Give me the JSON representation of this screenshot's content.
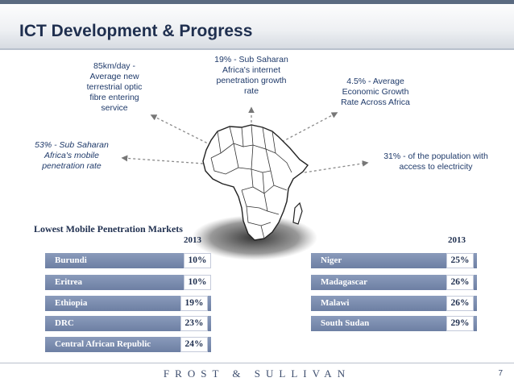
{
  "slide": {
    "title": "ICT Development & Progress",
    "page_number": "7",
    "footer_brand": "FROST & SULLIVAN"
  },
  "callouts": {
    "fibre": [
      "85km/day -",
      "Average new",
      "terrestrial optic",
      "fibre entering",
      "service"
    ],
    "internet": [
      "19% - Sub Saharan",
      "Africa's internet",
      "penetration growth",
      "rate"
    ],
    "growth": [
      "4.5% - Average",
      "Economic Growth",
      "Rate Across Africa"
    ],
    "mobile": [
      "53% - Sub Saharan",
      "Africa's mobile",
      "penetration rate"
    ],
    "electricity": [
      "31% - of the population with",
      "access to electricity"
    ]
  },
  "markets": {
    "title": "Lowest Mobile Penetration Markets",
    "year": "2013",
    "left": [
      {
        "name": "Burundi",
        "value": "10%"
      },
      {
        "name": "Eritrea",
        "value": "10%"
      },
      {
        "name": "Ethiopia",
        "value": "19%"
      },
      {
        "name": "DRC",
        "value": "23%"
      },
      {
        "name": "Central African Republic",
        "value": "24%"
      }
    ],
    "right": [
      {
        "name": "Niger",
        "value": "25%"
      },
      {
        "name": "Madagascar",
        "value": "26%"
      },
      {
        "name": "Malawi",
        "value": "26%"
      },
      {
        "name": "South Sudan",
        "value": "29%"
      }
    ]
  },
  "colors": {
    "title": "#1f2f4f",
    "callout_text": "#1f3a6a",
    "bar": "#7384a8",
    "map_fill": "#ffffff",
    "map_shadow": "#222222"
  }
}
